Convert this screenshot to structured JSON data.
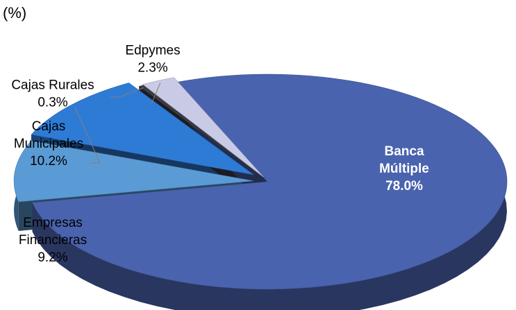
{
  "chart_data": {
    "type": "pie",
    "unit_label": "(%)",
    "slices": [
      {
        "name_lines": [
          "Banca",
          "Múltiple"
        ],
        "value": 78.0,
        "value_label": "78.0%",
        "color": "#4A63AE"
      },
      {
        "name_lines": [
          "Empresas",
          "Financieras"
        ],
        "value": 9.2,
        "value_label": "9.2%",
        "color": "#5B9BD5"
      },
      {
        "name_lines": [
          "Cajas",
          "Municipales"
        ],
        "value": 10.2,
        "value_label": "10.2%",
        "color": "#2E7BD6"
      },
      {
        "name_lines": [
          "Cajas Rurales"
        ],
        "value": 0.3,
        "value_label": "0.3%",
        "color": "#3C3C46"
      },
      {
        "name_lines": [
          "Edpymes"
        ],
        "value": 2.3,
        "value_label": "2.3%",
        "color": "#C9CBE6"
      }
    ],
    "legend": "none"
  }
}
